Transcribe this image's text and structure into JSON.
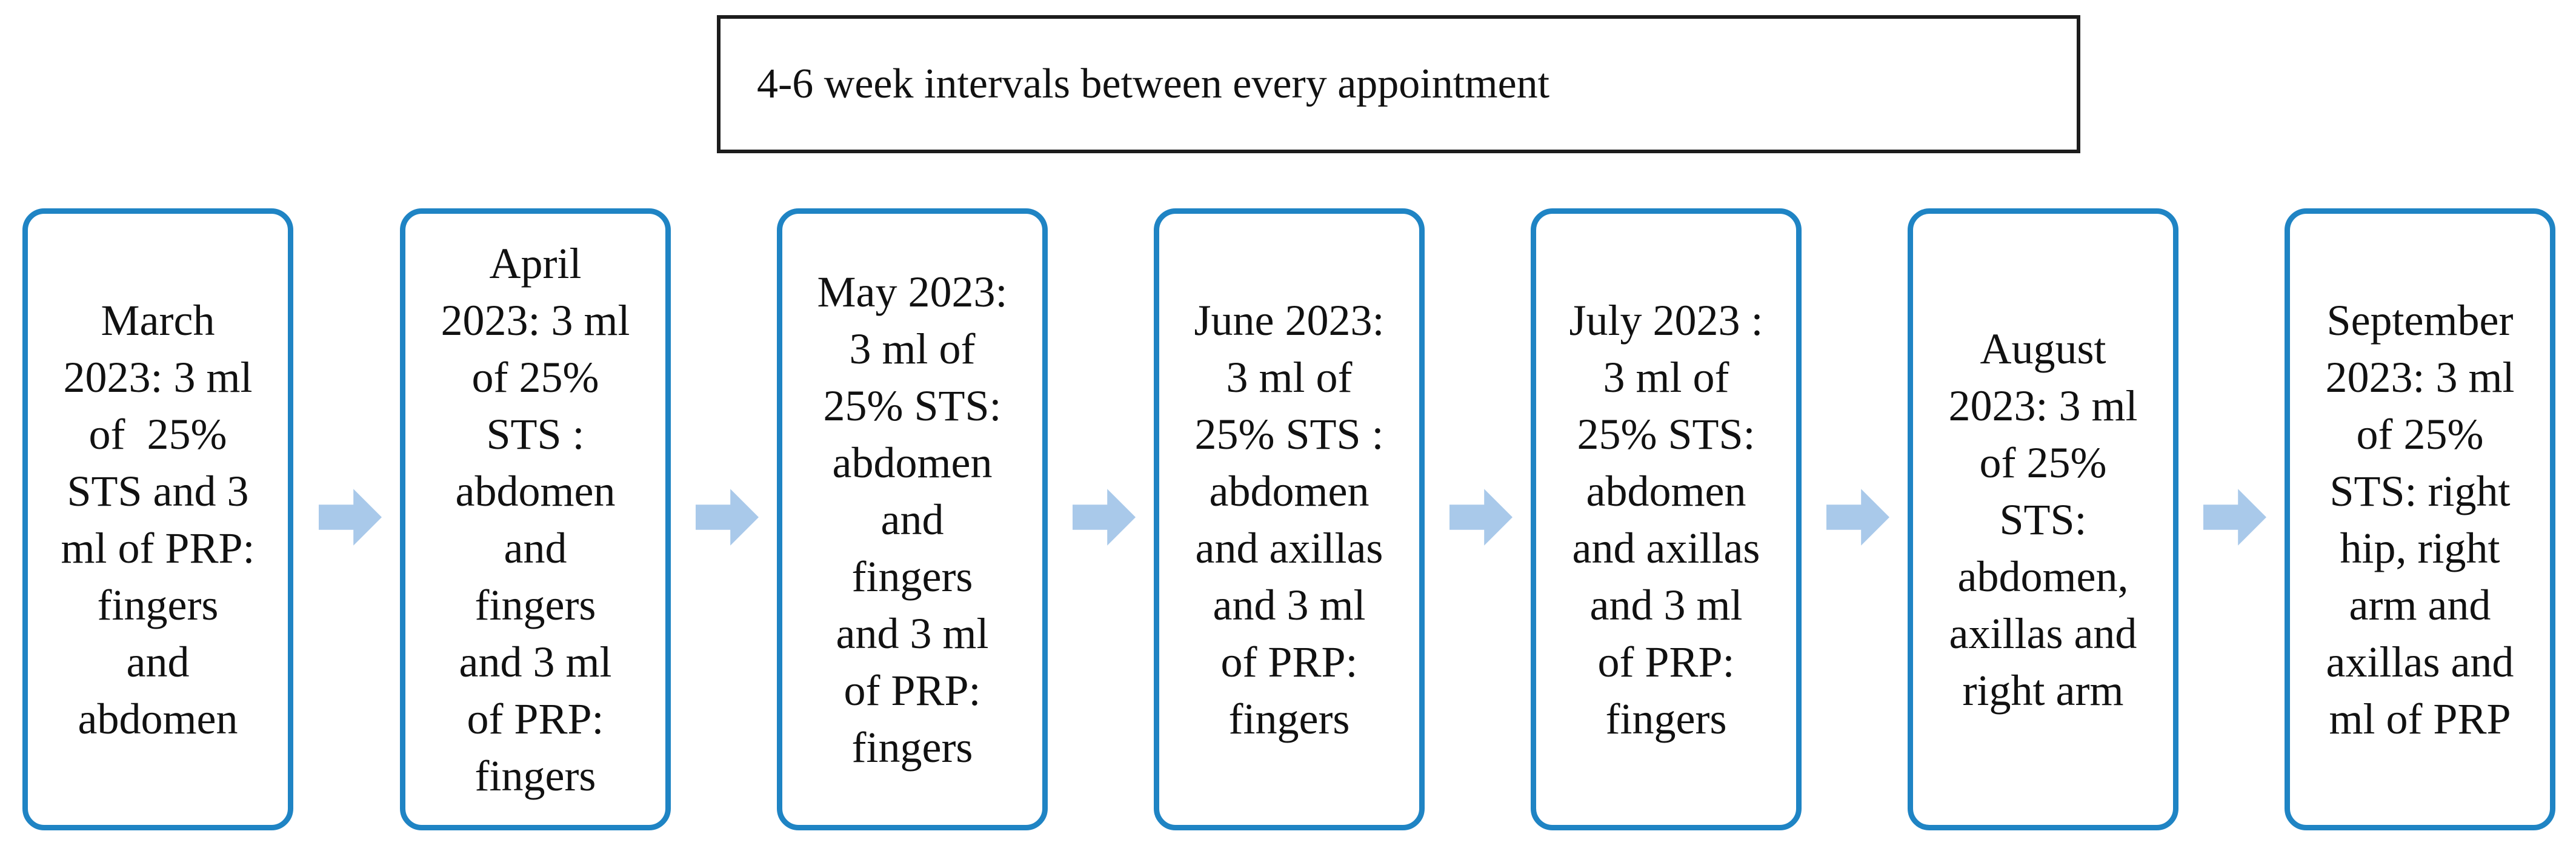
{
  "header": {
    "text": "4-6 week intervals between every appointment"
  },
  "steps": [
    {
      "lines": [
        "March",
        "2023: 3 ml",
        "of  25%",
        "STS and 3",
        "ml of PRP:",
        "fingers",
        "and",
        "abdomen"
      ]
    },
    {
      "lines": [
        "April",
        "2023: 3 ml",
        "of 25%",
        "STS :",
        "abdomen",
        "and",
        "fingers",
        "and 3 ml",
        "of PRP:",
        "fingers"
      ]
    },
    {
      "lines": [
        "May 2023:",
        "3 ml of",
        "25% STS:",
        "abdomen",
        "and",
        "fingers",
        "and 3 ml",
        "of PRP:",
        "fingers"
      ]
    },
    {
      "lines": [
        "June 2023:",
        "3 ml of",
        "25% STS :",
        "abdomen",
        "and axillas",
        "and 3 ml",
        "of PRP:",
        "fingers"
      ]
    },
    {
      "lines": [
        "July 2023 :",
        "3 ml of",
        "25% STS:",
        "abdomen",
        "and axillas",
        "and 3 ml",
        "of PRP:",
        "fingers"
      ]
    },
    {
      "lines": [
        "August",
        "2023: 3 ml",
        "of 25%",
        "STS:",
        "abdomen,",
        "axillas and",
        "right arm"
      ]
    },
    {
      "lines": [
        "September",
        "2023: 3 ml",
        "of 25%",
        "STS: right",
        "hip, right",
        "arm and",
        "axillas and",
        "ml of PRP"
      ]
    }
  ],
  "colors": {
    "box_border": "#1f84c4",
    "arrow_fill": "#a9c9ea",
    "header_border": "#1c1c1c"
  },
  "icons": {
    "arrow": "right-arrow-icon"
  }
}
